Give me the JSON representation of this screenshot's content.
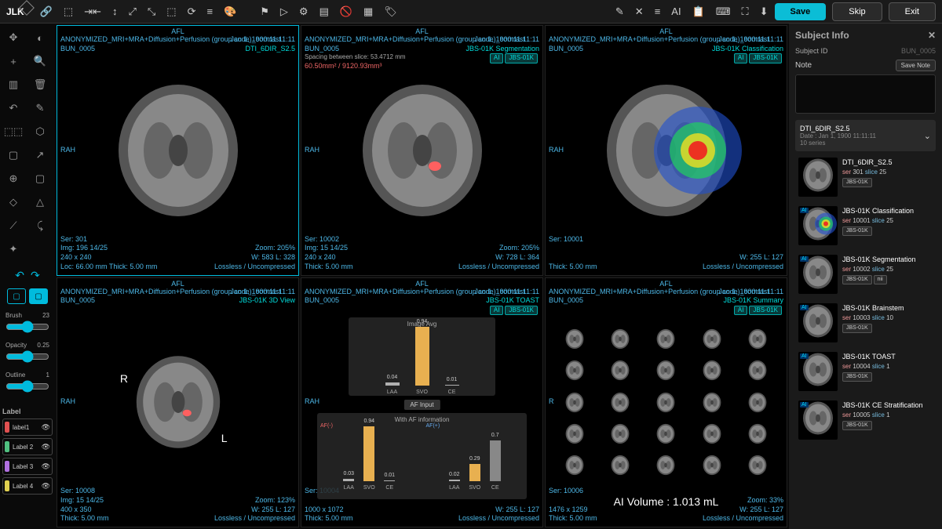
{
  "logo": "JLK",
  "topbarIconsL": [
    "🔗",
    "⬚",
    "⇥⇤",
    "↕",
    "⤢",
    "⤡",
    "⬚",
    "⟳",
    "≡",
    "🎨"
  ],
  "topbarIconsM": [
    "⚑",
    "▷",
    "⚙",
    "▤",
    "🚫",
    "▦",
    "🏷"
  ],
  "topbarIconsR": [
    "✎",
    "✕",
    "≡",
    "AI",
    "📋",
    "⌨",
    "⛶",
    "⬇"
  ],
  "buttons": {
    "save": "Save",
    "skip": "Skip",
    "exit": "Exit"
  },
  "tools": [
    "✥",
    "◐",
    "+",
    "🔍",
    "▥",
    "🗑",
    "↶",
    "✎",
    "⬚⬚",
    "⬡",
    "▢",
    "↗",
    "⊕",
    "▢",
    "◇",
    "△",
    "⟋",
    "⤹",
    "✦",
    ""
  ],
  "sliders": {
    "brush": {
      "label": "Brush",
      "value": "23"
    },
    "opacity": {
      "label": "Opacity",
      "value": "0.25"
    },
    "outline": {
      "label": "Outline",
      "value": "1"
    }
  },
  "labelHeader": "Label",
  "labels": [
    {
      "name": "label1",
      "color": "#e05050"
    },
    {
      "name": "Label 2",
      "color": "#50c080"
    },
    {
      "name": "Label 3",
      "color": "#b070e0"
    },
    {
      "name": "Label 4",
      "color": "#e0d050"
    }
  ],
  "viewers": [
    {
      "afl": "AFL",
      "top": "ANONYMIZED_MRI+MRA+Diffusion+Perfusion (group code)_contrast",
      "sub": "BUN_0005",
      "date": "Jan 1, 1900 11:11:11",
      "sol": "DTI_6DIR_S2.5",
      "rah": "RAH",
      "bl": "Ser: 301\nImg: 196 14/25\n240 x 240\nLoc: 66.00 mm Thick: 5.00 mm",
      "br": "Zoom: 205%\nW: 583 L: 328\nLossless / Uncompressed",
      "selected": true
    },
    {
      "afl": "AFL",
      "top": "ANONYMIZED_MRI+MRA+Diffusion+Perfusion (group code)_contrast",
      "sub": "BUN_0005",
      "date": "Jan 1, 1900 11:11:11",
      "sol": "JBS-01K Segmentation",
      "badges": [
        "AI",
        "JBS-01K"
      ],
      "extra": "Spacing between slice: 53.4712 mm",
      "red": "60.50mm² / 9120.93mm³",
      "rah": "RAH",
      "bl": "Ser: 10002\nImg: 15 14/25\n240 x 240\nThick: 5.00 mm",
      "br": "Zoom: 205%\nW: 728 L: 364\nLossless / Uncompressed"
    },
    {
      "afl": "AFL",
      "top": "ANONYMIZED_MRI+MRA+Diffusion+Perfusion (group code)_contrast",
      "sub": "BUN_0005",
      "date": "Jan 1, 1900 11:11:11",
      "sol": "JBS-01K Classification",
      "badges": [
        "AI",
        "JBS-01K"
      ],
      "rah": "RAH",
      "bl": "Ser: 10001\n\n\nThick: 5.00 mm",
      "br": "\nW: 255 L: 127\nLossless / Uncompressed",
      "heatmap": true
    },
    {
      "afl": "AFL",
      "top": "ANONYMIZED_MRI+MRA+Diffusion+Perfusion (group code)_contrast",
      "sub": "BUN_0005",
      "date": "Jan 1, 1900 11:11:11",
      "sol": "JBS-01K 3D View",
      "rah": "RAH",
      "bl": "Ser: 10008\nImg: 15 14/25\n400 x 350\nThick: 5.00 mm",
      "br": "Zoom: 123%\nW: 255 L: 127\nLossless / Uncompressed",
      "view3d": true
    },
    {
      "afl": "AFL",
      "top": "ANONYMIZED_MRI+MRA+Diffusion+Perfusion (group code)_contrast",
      "sub": "BUN_0005",
      "date": "Jan 1, 1900 11:11:11",
      "sol": "JBS-01K TOAST",
      "badges": [
        "AI",
        "JBS-01K"
      ],
      "rah": "RAH",
      "bl": "Ser: 10004\n\n1000 x 1072\nThick: 5.00 mm",
      "br": "\nW: 255 L: 127\nLossless / Uncompressed",
      "toast": true
    },
    {
      "afl": "AFL",
      "top": "ANONYMIZED_MRI+MRA+Diffusion+Perfusion (group code)_contrast",
      "sub": "BUN_0005",
      "date": "Jan 1, 1900 11:11:11",
      "sol": "JBS-01K Summary",
      "badges": [
        "AI",
        "JBS-01K"
      ],
      "rah": "RAH",
      "bl": "Ser: 10006\n\n1476 x 1259\nThick: 5.00 mm",
      "br": "Zoom: 33%\nW: 255 L: 127\nLossless / Uncompressed",
      "summary": true,
      "aivol": "AI Volume : 1.013 mL"
    }
  ],
  "toast": {
    "title1": "Image Avg",
    "title2": "AF Input",
    "title3": "With AF information",
    "top": {
      "cats": [
        "LAA",
        "SVO",
        "CE"
      ],
      "vals": [
        0.04,
        0.94,
        0.01
      ],
      "heights": [
        4,
        75,
        1
      ],
      "colors": [
        "#b0b0b0",
        "#e8b050",
        "#b0b0b0"
      ]
    },
    "bottom": [
      {
        "title": "AF(-)",
        "cats": [
          "LAA",
          "SVO",
          "CE"
        ],
        "vals": [
          0.03,
          0.94,
          0.01
        ],
        "heights": [
          3,
          70,
          1
        ],
        "colors": [
          "#b0b0b0",
          "#e8b050",
          "#b0b0b0"
        ]
      },
      {
        "title": "AF(+)",
        "cats": [
          "LAA",
          "SVO",
          "CE"
        ],
        "vals": [
          0.02,
          0.29,
          0.7
        ],
        "heights": [
          2,
          22,
          52
        ],
        "colors": [
          "#b0b0b0",
          "#e8b050",
          "#888888"
        ]
      }
    ]
  },
  "rightPanel": {
    "title": "Subject Info",
    "subjectIdLabel": "Subject ID",
    "subjectId": "BUN_0005",
    "noteLabel": "Note",
    "saveNote": "Save Note",
    "seriesGroup": {
      "title": "DTI_6DIR_S2.5",
      "date": "Date : Jan 1, 1900 11:11:11",
      "count": "10 series"
    },
    "series": [
      {
        "title": "DTI_6DIR_S2.5",
        "ser": "301",
        "slice": "25",
        "tags": [
          "JBS-01K"
        ]
      },
      {
        "title": "JBS-01K Classification",
        "ser": "10001",
        "slice": "25",
        "tags": [
          "JBS-01K"
        ],
        "ai": true
      },
      {
        "title": "JBS-01K Segmentation",
        "ser": "10002",
        "slice": "25",
        "tags": [
          "JBS-01K",
          "nii"
        ],
        "ai": true
      },
      {
        "title": "JBS-01K Brainstem",
        "ser": "10003",
        "slice": "10",
        "tags": [
          "JBS-01K"
        ],
        "ai": true
      },
      {
        "title": "JBS-01K TOAST",
        "ser": "10004",
        "slice": "1",
        "tags": [
          "JBS-01K"
        ],
        "ai": true
      },
      {
        "title": "JBS-01K CE Stratification",
        "ser": "10005",
        "slice": "1",
        "tags": [
          "JBS-01K"
        ],
        "ai": true
      }
    ]
  }
}
